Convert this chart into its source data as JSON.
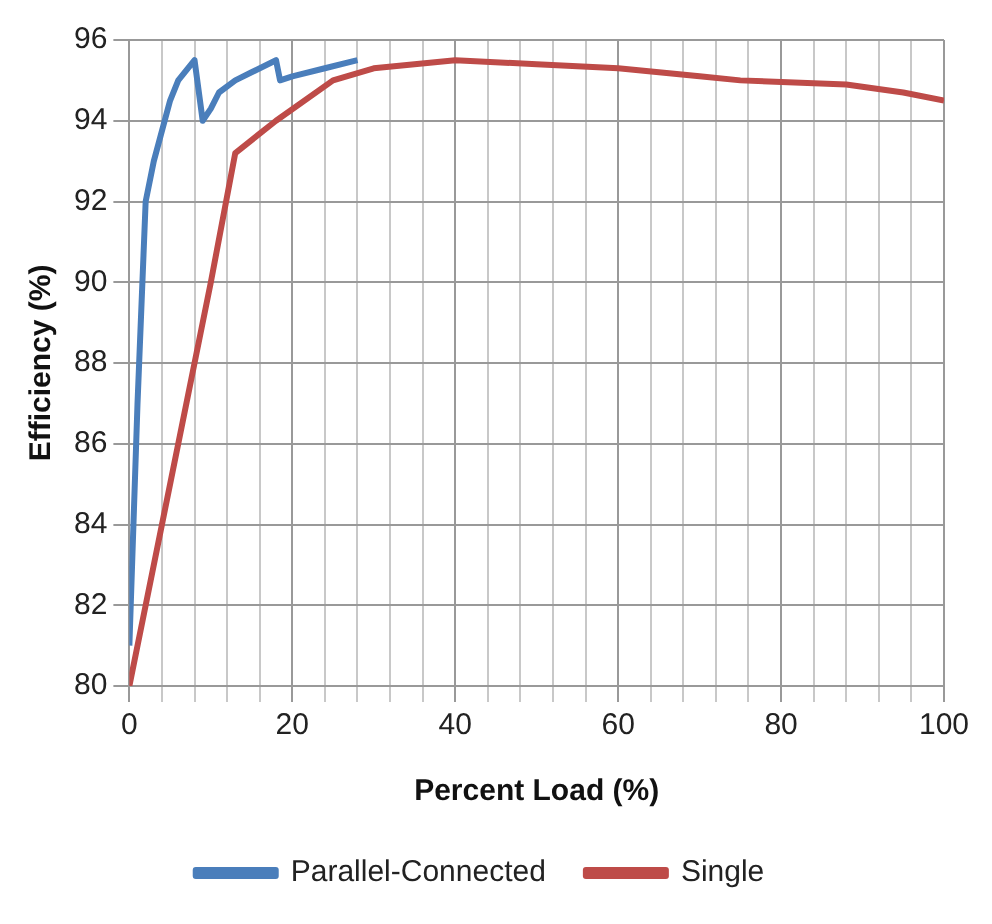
{
  "chart_data": {
    "type": "line",
    "xlabel": "Percent Load (%)",
    "ylabel": "Efficiency (%)",
    "xlim": [
      0,
      100
    ],
    "xticks": [
      0,
      20,
      40,
      60,
      80,
      100
    ],
    "ylim": [
      80,
      96
    ],
    "yticks": [
      80,
      82,
      84,
      86,
      88,
      90,
      92,
      94,
      96
    ],
    "grid": true,
    "legend": "bottom",
    "marker": "none",
    "line_style": "solid",
    "series": [
      {
        "name": "Parallel-Connected",
        "color": "#4a7ebb",
        "x": [
          0,
          1,
          2,
          3,
          5,
          6,
          8,
          9,
          10,
          11,
          13,
          15,
          18,
          18.5,
          20,
          24,
          28
        ],
        "values": [
          81,
          87,
          92,
          93,
          94.5,
          95,
          95.5,
          94,
          94.3,
          94.7,
          95,
          95.2,
          95.5,
          95,
          95.1,
          95.3,
          95.5
        ]
      },
      {
        "name": "Single",
        "color": "#be4b48",
        "x": [
          0,
          5,
          10,
          13,
          18,
          25,
          30,
          40,
          50,
          60,
          70,
          75,
          88,
          95,
          100
        ],
        "values": [
          80,
          85,
          90,
          93.2,
          94,
          95,
          95.3,
          95.5,
          95.4,
          95.3,
          95.1,
          95,
          94.9,
          94.7,
          94.5
        ]
      }
    ]
  }
}
